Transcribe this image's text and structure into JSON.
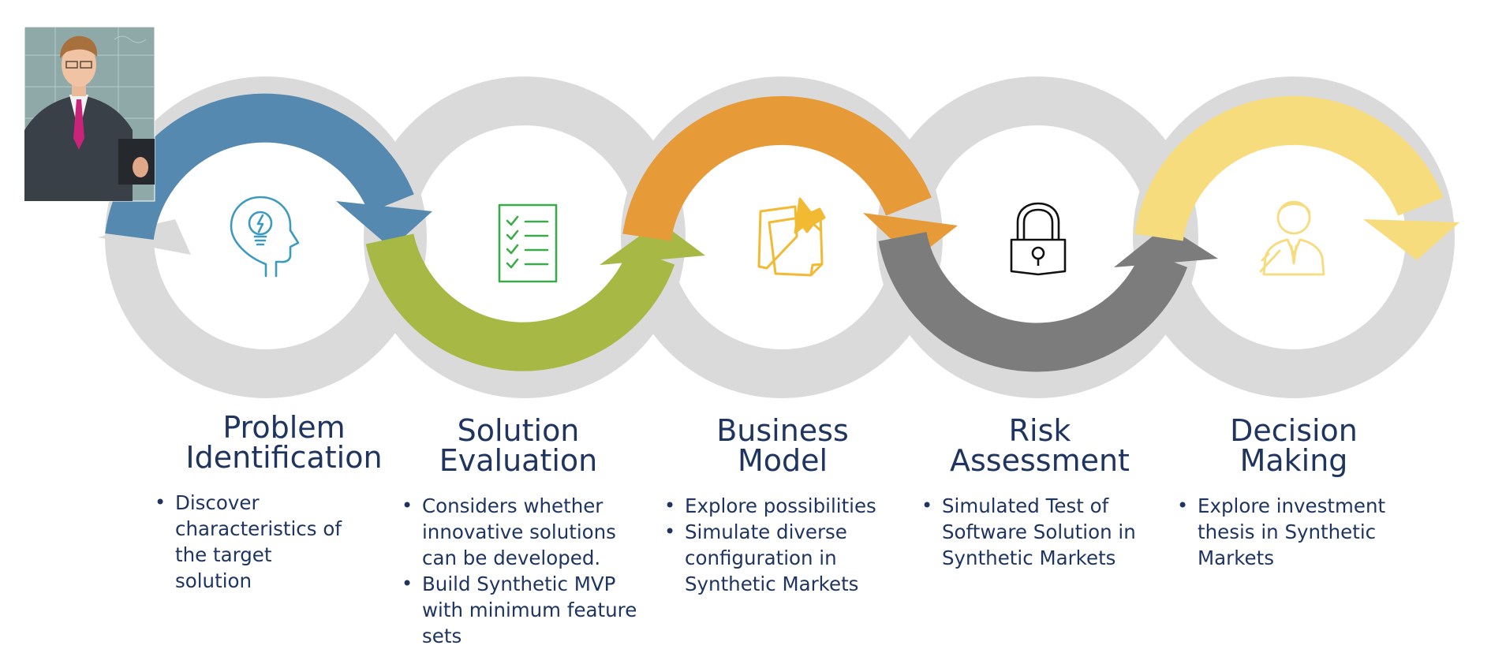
{
  "stages": [
    {
      "title_line1": "Problem",
      "title_line2": "Identification",
      "bullets": [
        "Discover characteristics of the target solution"
      ],
      "color": "#5589b0",
      "icon": "lightbulb-head-icon"
    },
    {
      "title_line1": "Solution",
      "title_line2": "Evaluation",
      "bullets": [
        "Considers whether innovative solutions can be developed.",
        "Build Synthetic MVP with minimum feature sets"
      ],
      "color": "#a8b845",
      "icon": "checklist-icon"
    },
    {
      "title_line1": "Business",
      "title_line2": "Model",
      "bullets": [
        "Explore possibilities",
        "Simulate diverse configuration in Synthetic Markets"
      ],
      "color": "#e69a38",
      "icon": "pinned-notes-icon"
    },
    {
      "title_line1": "Risk",
      "title_line2": "Assessment",
      "bullets": [
        "Simulated Test of Software Solution in Synthetic Markets"
      ],
      "color": "#7c7c7c",
      "icon": "padlock-icon"
    },
    {
      "title_line1": "Decision",
      "title_line2": "Making",
      "bullets": [
        "Explore investment thesis in Synthetic Markets"
      ],
      "color": "#f6dc7c",
      "icon": "businessman-icon"
    }
  ],
  "colors": {
    "ring_gray": "#dadada",
    "title_navy": "#1f3560",
    "photo_bg": "#8fa9a8"
  }
}
